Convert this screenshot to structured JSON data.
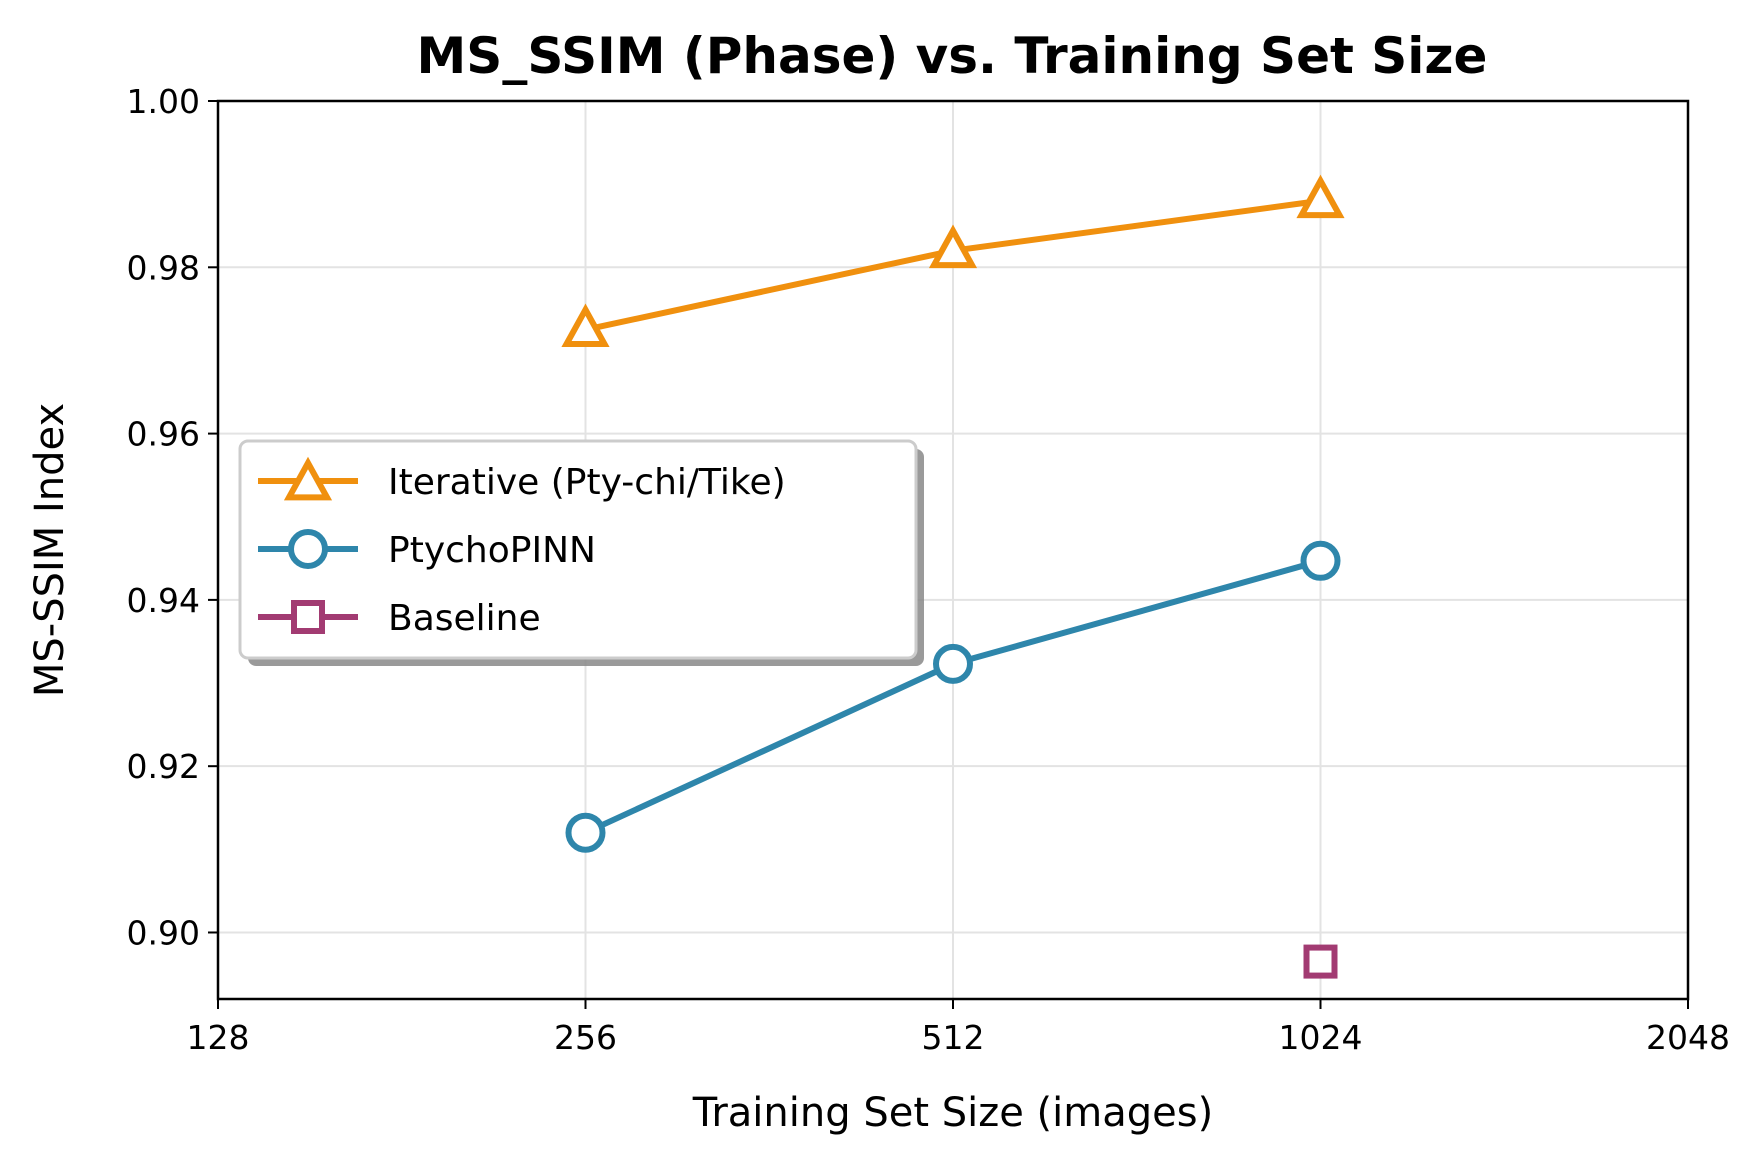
{
  "chart_data": {
    "type": "line",
    "title": "MS_SSIM (Phase) vs. Training Set Size",
    "xlabel": "Training Set Size (images)",
    "ylabel": "MS-SSIM Index",
    "x_scale": "log2",
    "xlim": [
      128,
      2048
    ],
    "ylim": [
      0.892,
      1.0
    ],
    "x_ticks": [
      "128",
      "256",
      "512",
      "1024",
      "2048"
    ],
    "y_ticks": [
      "0.90",
      "0.92",
      "0.94",
      "0.96",
      "0.98",
      "1.00"
    ],
    "grid": true,
    "legend_position": "center-left",
    "series": [
      {
        "name": "Iterative (Pty-chi/Tike)",
        "marker": "triangle",
        "color": "#f0900e",
        "x": [
          256,
          512,
          1024
        ],
        "y": [
          0.9725,
          0.982,
          0.988
        ]
      },
      {
        "name": "PtychoPINN",
        "marker": "circle",
        "color": "#2e86ab",
        "x": [
          256,
          512,
          1024
        ],
        "y": [
          0.912,
          0.9323,
          0.9447
        ]
      },
      {
        "name": "Baseline",
        "marker": "square",
        "color": "#a23b72",
        "x": [
          1024
        ],
        "y": [
          0.8965
        ]
      }
    ]
  }
}
